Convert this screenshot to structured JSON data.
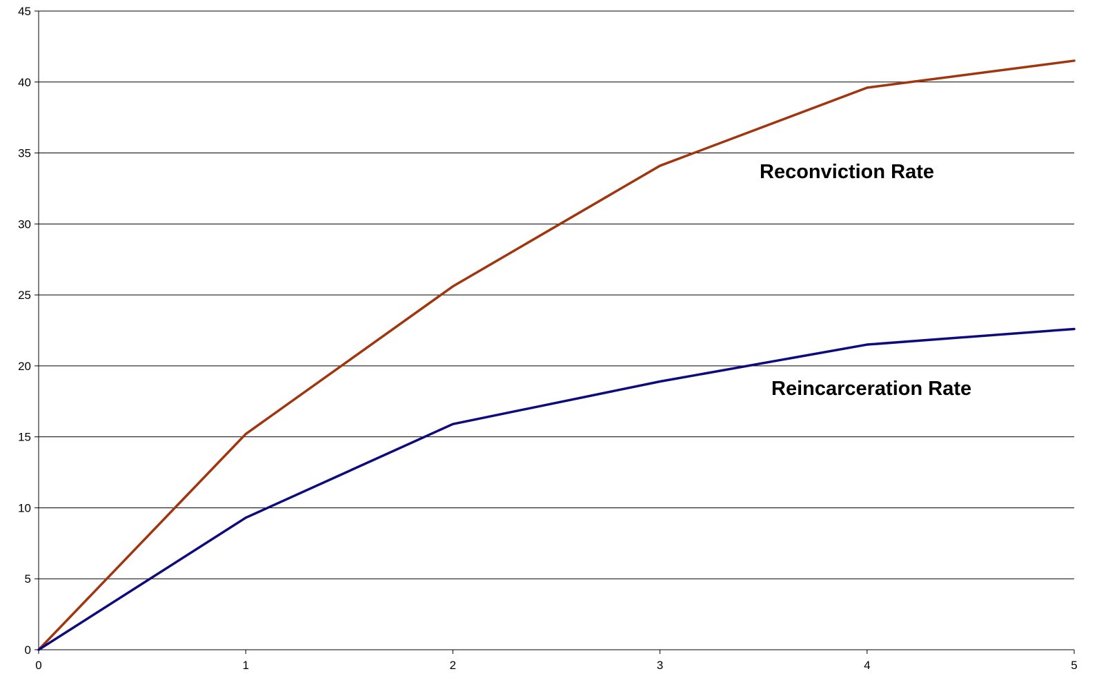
{
  "chart_data": {
    "type": "line",
    "title": "",
    "xlabel": "",
    "ylabel": "",
    "x": [
      0,
      1,
      2,
      3,
      4,
      5
    ],
    "xlim": [
      0,
      5
    ],
    "ylim": [
      0,
      45
    ],
    "x_ticks": [
      "0",
      "1",
      "2",
      "3",
      "4",
      "5"
    ],
    "y_ticks": [
      "0",
      "5",
      "10",
      "15",
      "20",
      "25",
      "30",
      "35",
      "40",
      "45"
    ],
    "grid": "horizontal",
    "legend": "none",
    "series": [
      {
        "name": "Reconviction Rate",
        "color": "#a0350e",
        "values": [
          0,
          15.2,
          25.6,
          34.1,
          39.6,
          41.5
        ]
      },
      {
        "name": "Reincarceration Rate",
        "color": "#0d0a7e",
        "values": [
          0,
          9.3,
          15.9,
          18.9,
          21.5,
          22.6
        ]
      }
    ]
  }
}
